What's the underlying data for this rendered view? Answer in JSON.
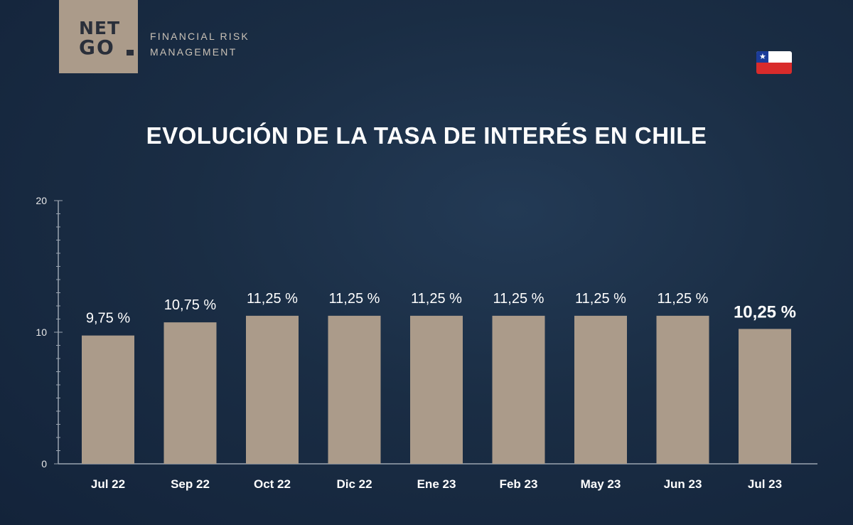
{
  "brand": {
    "logo_line1": "NET",
    "logo_line2": "GO",
    "tagline_line1": "FINANCIAL RISK",
    "tagline_line2": "MANAGEMENT",
    "flag": "chile-flag-icon"
  },
  "colors": {
    "background": "#1a2d44",
    "bar": "#ab9b8a",
    "text": "#ffffff"
  },
  "chart_data": {
    "type": "bar",
    "title": "EVOLUCIÓN DE LA TASA DE INTERÉS EN CHILE",
    "xlabel": "",
    "ylabel": "",
    "ylim": [
      0,
      20
    ],
    "yticks": [
      "0",
      "10",
      "20"
    ],
    "categories": [
      "Jul 22",
      "Sep 22",
      "Oct 22",
      "Dic 22",
      "Ene 23",
      "Feb 23",
      "May 23",
      "Jun 23",
      "Jul 23"
    ],
    "values": [
      9.75,
      10.75,
      11.25,
      11.25,
      11.25,
      11.25,
      11.25,
      11.25,
      10.25
    ],
    "labels": [
      "9,75 %",
      "10,75 %",
      "11,25 %",
      "11,25 %",
      "11,25 %",
      "11,25 %",
      "11,25 %",
      "11,25 %",
      "10,25 %"
    ],
    "highlight_index": 8,
    "grid": false,
    "legend": "none"
  }
}
